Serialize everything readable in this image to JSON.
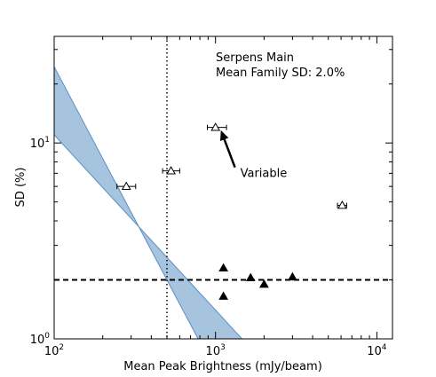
{
  "chart_data": {
    "type": "scatter",
    "title": "",
    "xlabel": "Mean Peak Brightness (mJy/beam)",
    "ylabel": "SD (%)",
    "xscale": "log",
    "yscale": "log",
    "xlim": [
      100,
      12500
    ],
    "ylim": [
      1,
      35
    ],
    "x_ticks": [
      {
        "value": 100,
        "base": "10",
        "exp": "2"
      },
      {
        "value": 1000,
        "base": "10",
        "exp": "3"
      },
      {
        "value": 10000,
        "base": "10",
        "exp": "4"
      }
    ],
    "y_ticks": [
      {
        "value": 1,
        "base": "10",
        "exp": "0"
      },
      {
        "value": 10,
        "base": "10",
        "exp": "1"
      }
    ],
    "text_lines": [
      "Serpens Main",
      "Mean Family SD: 2.0%"
    ],
    "annotation": {
      "text": "Variable",
      "point": [
        1080,
        11.6
      ],
      "text_at": [
        1320,
        7.5
      ]
    },
    "hline": {
      "y": 2.0,
      "style": "dashed"
    },
    "vline": {
      "x": 500,
      "style": "dotted"
    },
    "band": {
      "upper": [
        [
          100,
          24.5
        ],
        [
          780,
          1.0
        ]
      ],
      "lower": [
        [
          100,
          11.0
        ],
        [
          1900,
          0.79
        ]
      ],
      "color": "#a7c4df",
      "edge_color": "#5b8fc4"
    },
    "series": [
      {
        "marker": "open-triangle",
        "points": [
          {
            "x": 280,
            "y": 6.0,
            "xerr": [
              245,
              320
            ]
          },
          {
            "x": 530,
            "y": 7.2,
            "xerr": [
              470,
              600
            ]
          },
          {
            "x": 1000,
            "y": 12.0,
            "xerr": [
              890,
              1170
            ]
          },
          {
            "x": 6100,
            "y": 4.8,
            "xerr": [
              5700,
              6500
            ]
          }
        ]
      },
      {
        "marker": "filled-triangle",
        "points": [
          {
            "x": 1120,
            "y": 2.3
          },
          {
            "x": 1120,
            "y": 1.65
          },
          {
            "x": 1650,
            "y": 2.05
          },
          {
            "x": 2000,
            "y": 1.9
          },
          {
            "x": 3000,
            "y": 2.07
          }
        ]
      }
    ]
  }
}
